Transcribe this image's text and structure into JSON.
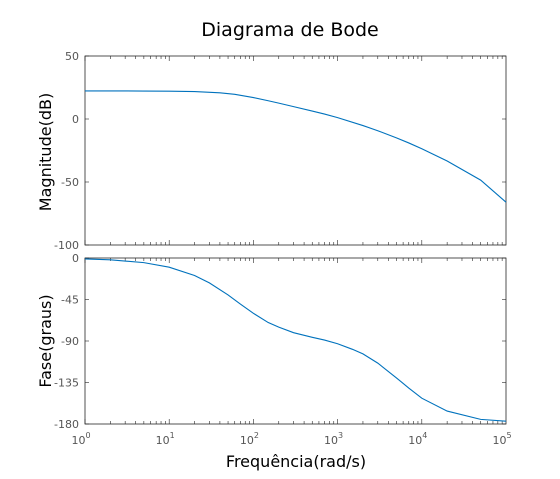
{
  "chart_data": [
    {
      "type": "line",
      "title": "Diagrama de Bode",
      "ylabel": "Magnitude(dB)",
      "xlabel": "",
      "x_scale": "log",
      "xlim": [
        1,
        100000
      ],
      "ylim": [
        -100,
        50
      ],
      "y_ticks": [
        "50",
        "0",
        "-50",
        "-100"
      ],
      "y_tick_values": [
        50,
        0,
        -50,
        -100
      ],
      "series": [
        {
          "x": [
            1,
            2,
            5,
            10,
            20,
            40,
            60,
            100,
            150,
            200,
            300,
            500,
            700,
            1000,
            2000,
            3000,
            5000,
            7000,
            10000,
            20000,
            50000,
            100000
          ],
          "values": [
            22.3,
            22.3,
            22.2,
            22.1,
            21.8,
            20.8,
            19.6,
            17.0,
            14.5,
            12.6,
            9.8,
            6.3,
            3.9,
            1.1,
            -5.2,
            -9.3,
            -15.0,
            -19.0,
            -23.6,
            -33.3,
            -48.5,
            -66.0
          ]
        }
      ]
    },
    {
      "type": "line",
      "xlabel": "Frequência(rad/s)",
      "ylabel": "Fase(graus)",
      "x_scale": "log",
      "xlim": [
        1,
        100000
      ],
      "ylim": [
        -180,
        0
      ],
      "y_ticks": [
        "0",
        "-45",
        "-90",
        "-135",
        "-180"
      ],
      "y_tick_values": [
        0,
        -45,
        -90,
        -135,
        -180
      ],
      "x_ticks": [
        {
          "base": "10",
          "exp": "0"
        },
        {
          "base": "10",
          "exp": "1"
        },
        {
          "base": "10",
          "exp": "2"
        },
        {
          "base": "10",
          "exp": "3"
        },
        {
          "base": "10",
          "exp": "4"
        },
        {
          "base": "10",
          "exp": "5"
        }
      ],
      "x_tick_values": [
        1,
        10,
        100,
        1000,
        10000,
        100000
      ],
      "series": [
        {
          "x": [
            1,
            2,
            5,
            10,
            20,
            30,
            50,
            70,
            100,
            150,
            200,
            300,
            500,
            700,
            1000,
            1500,
            2000,
            3000,
            5000,
            7000,
            10000,
            20000,
            50000,
            100000
          ],
          "values": [
            -1,
            -2,
            -5,
            -10,
            -19,
            -27,
            -40,
            -50,
            -60,
            -70,
            -75,
            -81,
            -86,
            -89,
            -93,
            -99,
            -104,
            -114,
            -130,
            -141,
            -152,
            -166,
            -175,
            -177
          ]
        }
      ]
    }
  ],
  "colors": {
    "line": "#0072BD",
    "axis": "#262626",
    "tick_text": "#555555"
  }
}
